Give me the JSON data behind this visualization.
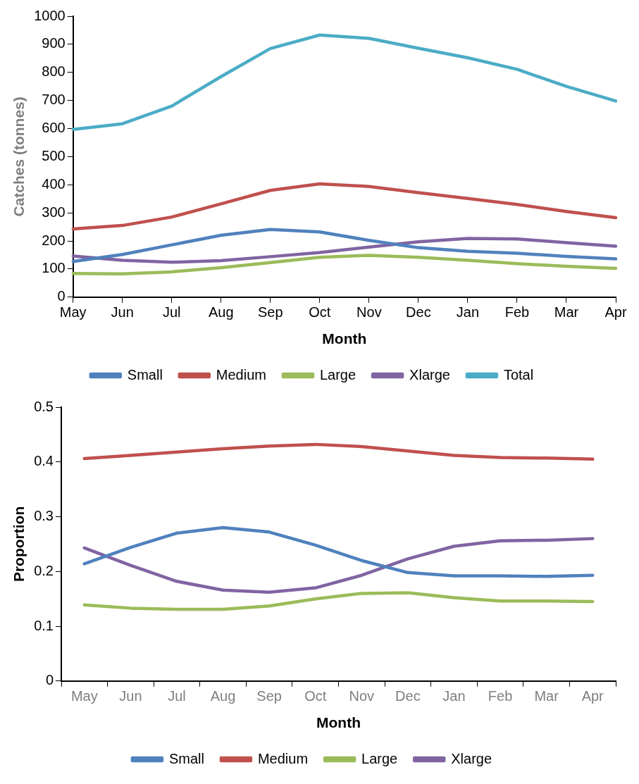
{
  "chart_data": [
    {
      "type": "line",
      "xlabel": "Month",
      "ylabel": "Catches (tonnes)",
      "categories": [
        "May",
        "Jun",
        "Jul",
        "Aug",
        "Sep",
        "Oct",
        "Nov",
        "Dec",
        "Jan",
        "Feb",
        "Mar",
        "Apr"
      ],
      "series": [
        {
          "name": "Small",
          "color": "#4f81bd",
          "values": [
            127,
            152,
            186,
            220,
            241,
            232,
            202,
            176,
            163,
            156,
            145,
            136
          ]
        },
        {
          "name": "Medium",
          "color": "#c0504d",
          "values": [
            243,
            255,
            285,
            332,
            380,
            403,
            394,
            372,
            351,
            330,
            305,
            283
          ]
        },
        {
          "name": "Large",
          "color": "#9bbb59",
          "values": [
            84,
            83,
            90,
            105,
            123,
            142,
            149,
            142,
            131,
            119,
            110,
            102
          ]
        },
        {
          "name": "Xlarge",
          "color": "#8064a2",
          "values": [
            146,
            131,
            124,
            130,
            144,
            159,
            178,
            197,
            209,
            207,
            194,
            181
          ]
        },
        {
          "name": "Total",
          "color": "#4bacc6",
          "values": [
            597,
            617,
            680,
            785,
            885,
            933,
            921,
            886,
            852,
            811,
            750,
            698
          ]
        }
      ],
      "ylim": [
        0,
        1000
      ],
      "yticks": [
        0,
        100,
        200,
        300,
        400,
        500,
        600,
        700,
        800,
        900,
        1000
      ],
      "grid": false,
      "legend": "bottom",
      "marker": "none",
      "line_style": "solid"
    },
    {
      "type": "line",
      "xlabel": "Month",
      "ylabel": "Proportion",
      "categories": [
        "May",
        "Jun",
        "Jul",
        "Aug",
        "Sep",
        "Oct",
        "Nov",
        "Dec",
        "Jan",
        "Feb",
        "Mar",
        "Apr"
      ],
      "series": [
        {
          "name": "Small",
          "color": "#4f81bd",
          "values": [
            0.214,
            0.244,
            0.27,
            0.28,
            0.272,
            0.248,
            0.22,
            0.198,
            0.192,
            0.192,
            0.191,
            0.193
          ]
        },
        {
          "name": "Medium",
          "color": "#c0504d",
          "values": [
            0.406,
            0.412,
            0.418,
            0.424,
            0.429,
            0.432,
            0.428,
            0.42,
            0.412,
            0.408,
            0.407,
            0.405
          ]
        },
        {
          "name": "Large",
          "color": "#9bbb59",
          "values": [
            0.139,
            0.133,
            0.131,
            0.131,
            0.137,
            0.15,
            0.16,
            0.161,
            0.152,
            0.146,
            0.146,
            0.145
          ]
        },
        {
          "name": "Xlarge",
          "color": "#8064a2",
          "values": [
            0.243,
            0.211,
            0.182,
            0.166,
            0.162,
            0.17,
            0.193,
            0.223,
            0.246,
            0.256,
            0.257,
            0.26
          ]
        }
      ],
      "ylim": [
        0,
        0.5
      ],
      "yticks": [
        0,
        0.1,
        0.2,
        0.3,
        0.4,
        0.5
      ],
      "grid": false,
      "legend": "bottom",
      "marker": "none",
      "line_style": "solid"
    }
  ]
}
